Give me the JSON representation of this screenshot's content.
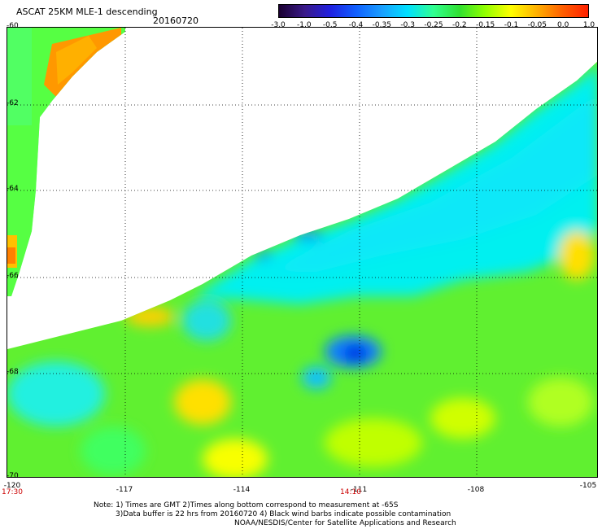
{
  "header": {
    "title": "ASCAT 25KM MLE-1 descending",
    "date": "20160720"
  },
  "colorbar": {
    "labels": [
      "-3.0",
      "-1.0",
      "-0.5",
      "-0.4",
      "-0.35",
      "-0.3",
      "-0.25",
      "-0.2",
      "-0.15",
      "-0.1",
      "-0.05",
      "0.0",
      "1.0"
    ],
    "colors": [
      "#1a0030",
      "#3a1a8a",
      "#2020e0",
      "#1060ff",
      "#1aa0ff",
      "#00e0ff",
      "#30ff90",
      "#30e030",
      "#90ff00",
      "#ffff00",
      "#ffb000",
      "#ff6000",
      "#ff2000"
    ]
  },
  "axes": {
    "lat_labels": [
      "-60",
      "-62",
      "-64",
      "-66",
      "-68",
      "-70"
    ],
    "lon_labels": [
      "-120",
      "-117",
      "-114",
      "-111",
      "-108",
      "-105"
    ],
    "time_labels": [
      "17:30",
      "14:10"
    ]
  },
  "notes": {
    "line1": "Note: 1) Times are GMT 2)Times along bottom correspond to measurement at -65S",
    "line2": "3)Data buffer is 22 hrs from 20160720 4) Black wind barbs indicate possible contamination",
    "line3": "NOAA/NESDIS/Center for Satellite Applications and Research"
  }
}
